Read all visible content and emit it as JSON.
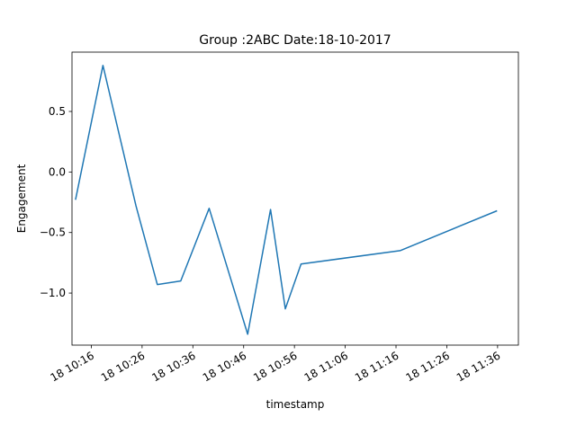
{
  "chart_data": {
    "type": "line",
    "title": "Group :2ABC Date:18-10-2017",
    "xlabel": "timestamp",
    "ylabel": "Engagement",
    "x_ticks": [
      {
        "label": "18 10:16",
        "t": 16
      },
      {
        "label": "18 10:26",
        "t": 26
      },
      {
        "label": "18 10:36",
        "t": 36
      },
      {
        "label": "18 10:46",
        "t": 46
      },
      {
        "label": "18 10:56",
        "t": 56
      },
      {
        "label": "18 11:06",
        "t": 66
      },
      {
        "label": "18 11:16",
        "t": 76
      },
      {
        "label": "18 11:26",
        "t": 86
      },
      {
        "label": "18 11:36",
        "t": 96
      }
    ],
    "y_ticks": [
      {
        "label": "−1.0",
        "v": -1.0
      },
      {
        "label": "−0.5",
        "v": -0.5
      },
      {
        "label": "0.0",
        "v": 0.0
      },
      {
        "label": "0.5",
        "v": 0.5
      }
    ],
    "xlim": [
      12.2,
      100.1
    ],
    "ylim": [
      -1.43,
      0.99
    ],
    "grid": false,
    "color": "#1f77b4",
    "series": [
      {
        "points": [
          {
            "t": 12.9,
            "y": -0.23
          },
          {
            "t": 18.3,
            "y": 0.88
          },
          {
            "t": 24.8,
            "y": -0.28
          },
          {
            "t": 29.0,
            "y": -0.93
          },
          {
            "t": 33.6,
            "y": -0.9
          },
          {
            "t": 39.2,
            "y": -0.3
          },
          {
            "t": 46.8,
            "y": -1.34
          },
          {
            "t": 51.3,
            "y": -0.31
          },
          {
            "t": 54.2,
            "y": -1.13
          },
          {
            "t": 57.3,
            "y": -0.76
          },
          {
            "t": 76.8,
            "y": -0.65
          },
          {
            "t": 95.9,
            "y": -0.32
          }
        ]
      }
    ]
  }
}
